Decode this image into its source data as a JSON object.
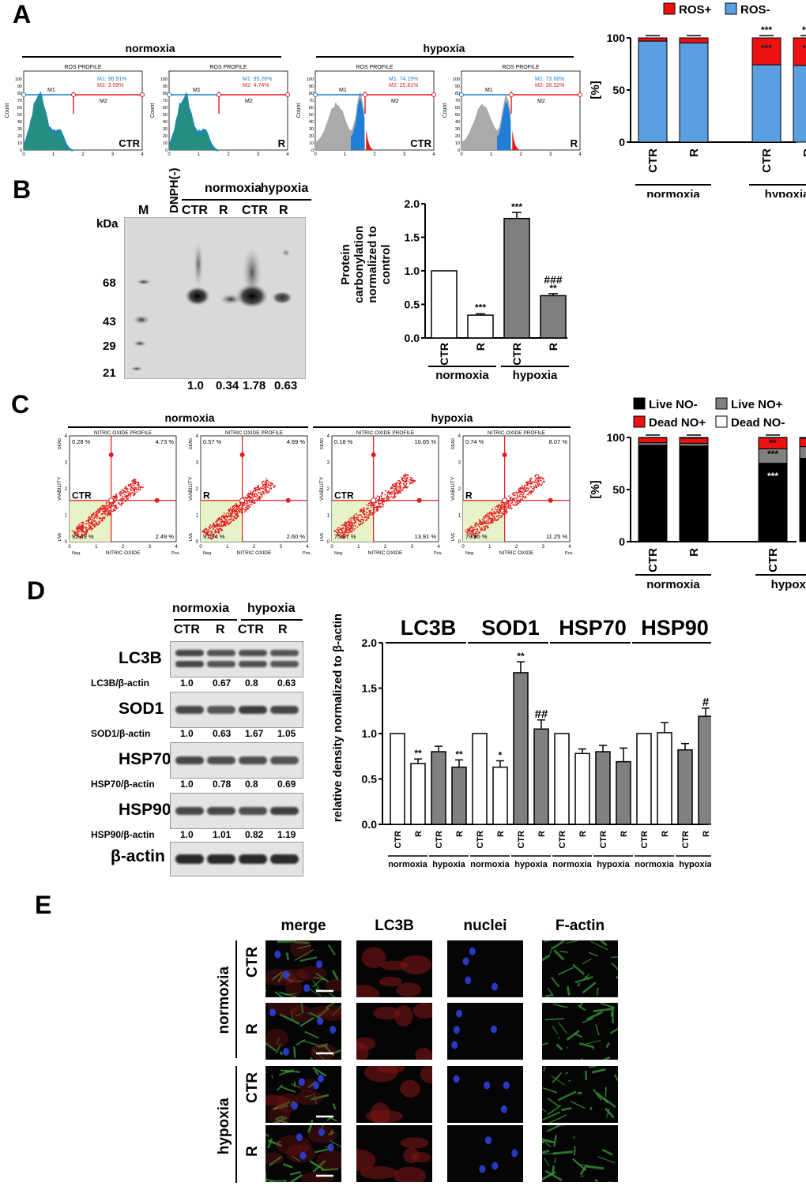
{
  "panels": {
    "a": "A",
    "b": "B",
    "c": "C",
    "d": "D",
    "e": "E"
  },
  "groups": {
    "normoxia": "normoxia",
    "hypoxia": "hypoxia"
  },
  "conditions": {
    "ctr": "CTR",
    "r": "R"
  },
  "panel_a": {
    "profile_title": "ROS PROFILE",
    "axis_y": "Count",
    "axis_x": "ROS",
    "axis_neg": "Neg.",
    "axis_pos": "Pos.",
    "y_ticks": [
      "0",
      "10",
      "20",
      "30",
      "40",
      "50",
      "60",
      "70",
      "80",
      "90",
      "100"
    ],
    "x_ticks": [
      "0",
      "1",
      "2",
      "3",
      "4"
    ],
    "m1_label": "M1",
    "m2_label": "M2",
    "histograms": [
      {
        "group": "normoxia",
        "cond": "CTR",
        "m1": "M1: 96.91%",
        "m2": "M2: 3.09%"
      },
      {
        "group": "normoxia",
        "cond": "R",
        "m1": "M1: 95.26%",
        "m2": "M2: 4.74%"
      },
      {
        "group": "hypoxia",
        "cond": "CTR",
        "m1": "M1: 74.19%",
        "m2": "M2: 25.81%"
      },
      {
        "group": "hypoxia",
        "cond": "R",
        "m1": "M1: 73.68%",
        "m2": "M2: 26.32%"
      }
    ]
  },
  "panel_b": {
    "kda_label": "kDa",
    "marker_lane": "M",
    "dnph_lane": "DNPH(-)",
    "kda_marks": [
      "68",
      "43",
      "29",
      "21"
    ],
    "quant": [
      "1.0",
      "0.34",
      "1.78",
      "0.63"
    ]
  },
  "panel_c": {
    "profile_title": "NITRIC OXIDE PROFILE",
    "axis_y": "VIABILITY",
    "axis_x": "NITRIC OXIDE",
    "axis_neg": "Neg.",
    "axis_pos": "Pos.",
    "axis_dead": "DEAD",
    "axis_live": "LIVE",
    "x_ticks": [
      "0",
      "1",
      "2",
      "3",
      "4"
    ],
    "y_ticks": [
      "0",
      "1",
      "2",
      "3",
      "4"
    ],
    "plots": [
      {
        "group": "normoxia",
        "cond": "CTR",
        "ul": "0.28 %",
        "ur": "4.73 %",
        "ll": "92.49 %",
        "lr": "2.49 %"
      },
      {
        "group": "normoxia",
        "cond": "R",
        "ul": "0.57 %",
        "ur": "4.99 %",
        "ll": "91.84 %",
        "lr": "2.60 %"
      },
      {
        "group": "hypoxia",
        "cond": "CTR",
        "ul": "0.18 %",
        "ur": "10.65 %",
        "ll": "75.27 %",
        "lr": "13.91 %"
      },
      {
        "group": "hypoxia",
        "cond": "R",
        "ul": "0.74 %",
        "ur": "8.07 %",
        "ll": "79.95 %",
        "lr": "11.25 %"
      }
    ]
  },
  "panel_d": {
    "proteins": [
      {
        "name": "LC3B",
        "ratio": "LC3B/β-actin",
        "values": [
          "1.0",
          "0.67",
          "0.8",
          "0.63"
        ]
      },
      {
        "name": "SOD1",
        "ratio": "SOD1/β-actin",
        "values": [
          "1.0",
          "0.63",
          "1.67",
          "1.05"
        ]
      },
      {
        "name": "HSP70",
        "ratio": "HSP70/β-actin",
        "values": [
          "1.0",
          "0.78",
          "0.8",
          "0.69"
        ]
      },
      {
        "name": "HSP90",
        "ratio": "HSP90/β-actin",
        "values": [
          "1.0",
          "1.01",
          "0.82",
          "1.19"
        ]
      }
    ],
    "loading_control": "β-actin"
  },
  "panel_e": {
    "columns": [
      "merge",
      "LC3B",
      "nuclei",
      "F-actin"
    ],
    "rows": [
      {
        "group": "normoxia",
        "cond": "CTR"
      },
      {
        "group": "normoxia",
        "cond": "R"
      },
      {
        "group": "hypoxia",
        "cond": "CTR"
      },
      {
        "group": "hypoxia",
        "cond": "R"
      }
    ]
  },
  "chart_data": [
    {
      "id": "ros",
      "type": "bar",
      "stacked": true,
      "categories": [
        "CTR",
        "R",
        "CTR",
        "R"
      ],
      "groups": [
        "normoxia",
        "normoxia",
        "hypoxia",
        "hypoxia"
      ],
      "ylabel": "[%]",
      "ylim": [
        0,
        100
      ],
      "yticks": [
        0,
        50,
        100
      ],
      "legend": [
        "ROS+",
        "ROS-"
      ],
      "legend_position": "top",
      "series": [
        {
          "name": "ROS-",
          "color": "#5aa0e0",
          "values": [
            96.91,
            95.26,
            74.19,
            73.68
          ]
        },
        {
          "name": "ROS+",
          "color": "#ee1111",
          "values": [
            3.09,
            4.74,
            25.81,
            26.32
          ]
        }
      ],
      "annotations": [
        {
          "category": 2,
          "text": "***",
          "position": "top"
        },
        {
          "category": 2,
          "text": "***",
          "position": "inside"
        },
        {
          "category": 3,
          "text": "***",
          "position": "top"
        },
        {
          "category": 3,
          "text": "***",
          "position": "inside"
        }
      ]
    },
    {
      "id": "carbonylation",
      "type": "bar",
      "categories": [
        "CTR",
        "R",
        "CTR",
        "R"
      ],
      "groups": [
        "normoxia",
        "normoxia",
        "hypoxia",
        "hypoxia"
      ],
      "ylabel_lines": [
        "Protein",
        "carbonylation",
        "normalized to",
        "control"
      ],
      "ylim": [
        0,
        2.0
      ],
      "yticks": [
        0.0,
        0.5,
        1.0,
        1.5,
        2.0
      ],
      "values": [
        1.0,
        0.34,
        1.78,
        0.63
      ],
      "errors": [
        0,
        0.02,
        0.09,
        0.03
      ],
      "colors": [
        "#ffffff",
        "#ffffff",
        "#808080",
        "#808080"
      ],
      "annotations": [
        {
          "category": 1,
          "text": "***"
        },
        {
          "category": 2,
          "text": "***"
        },
        {
          "category": 3,
          "text": "**"
        },
        {
          "category": 3,
          "text": "###"
        }
      ]
    },
    {
      "id": "nitric-oxide",
      "type": "bar",
      "stacked": true,
      "categories": [
        "CTR",
        "R",
        "CTR",
        "R"
      ],
      "groups": [
        "normoxia",
        "normoxia",
        "hypoxia",
        "hypoxia"
      ],
      "ylabel": "[%]",
      "ylim": [
        0,
        100
      ],
      "yticks": [
        0,
        50,
        100
      ],
      "legend": [
        "Live NO-",
        "Live NO+",
        "Dead NO+",
        "Dead NO-"
      ],
      "legend_position": "top",
      "series": [
        {
          "name": "Live NO-",
          "color": "#000000",
          "values": [
            92.49,
            91.84,
            75.27,
            79.95
          ]
        },
        {
          "name": "Live NO+",
          "color": "#808080",
          "values": [
            2.49,
            2.6,
            13.91,
            11.25
          ]
        },
        {
          "name": "Dead NO+",
          "color": "#ee1111",
          "values": [
            4.73,
            4.99,
            10.65,
            8.07
          ]
        },
        {
          "name": "Dead NO-",
          "color": "#ffffff",
          "values": [
            0.28,
            0.57,
            0.18,
            0.74
          ]
        }
      ],
      "annotations": [
        {
          "category": 2,
          "series": "Live NO-",
          "text": "***"
        },
        {
          "category": 2,
          "series": "Live NO+",
          "text": "***"
        },
        {
          "category": 2,
          "series": "Dead NO+",
          "text": "**"
        },
        {
          "category": 3,
          "series": "Live NO-",
          "text": "***"
        },
        {
          "category": 3,
          "series": "Live NO+",
          "text": "***"
        },
        {
          "category": 3,
          "series": "Dead NO+",
          "text": "**"
        }
      ]
    },
    {
      "id": "densitometry",
      "type": "bar",
      "ylabel": "relative density normalized to β-actin",
      "ylim": [
        0,
        2.0
      ],
      "yticks": [
        0.0,
        0.5,
        1.0,
        1.5,
        2.0
      ],
      "sections": [
        {
          "protein": "LC3B",
          "values": [
            1.0,
            0.67,
            0.8,
            0.63
          ],
          "errors": [
            0,
            0.05,
            0.06,
            0.08
          ],
          "marks": [
            "",
            "**",
            "",
            "**"
          ]
        },
        {
          "protein": "SOD1",
          "values": [
            1.0,
            0.63,
            1.67,
            1.05
          ],
          "errors": [
            0,
            0.07,
            0.12,
            0.1
          ],
          "marks": [
            "",
            "*",
            "**",
            "##"
          ]
        },
        {
          "protein": "HSP70",
          "values": [
            1.0,
            0.78,
            0.8,
            0.69
          ],
          "errors": [
            0,
            0.05,
            0.07,
            0.15
          ],
          "marks": [
            "",
            "",
            "",
            ""
          ]
        },
        {
          "protein": "HSP90",
          "values": [
            1.0,
            1.01,
            0.82,
            1.19
          ],
          "errors": [
            0,
            0.11,
            0.07,
            0.09
          ],
          "marks": [
            "",
            "",
            "",
            "#"
          ]
        }
      ],
      "categories": [
        "CTR",
        "R",
        "CTR",
        "R"
      ],
      "groups": [
        "normoxia",
        "normoxia",
        "hypoxia",
        "hypoxia"
      ],
      "colors": [
        "#ffffff",
        "#ffffff",
        "#808080",
        "#808080"
      ]
    }
  ]
}
